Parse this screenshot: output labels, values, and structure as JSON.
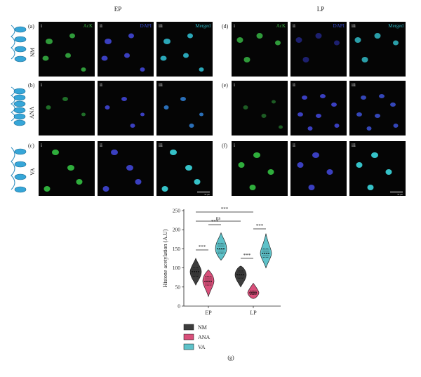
{
  "panels": {
    "groups": [
      {
        "title": "EP",
        "rows": [
          {
            "letter": "(a)",
            "label": "NM"
          },
          {
            "letter": "(b)",
            "label": "ANA"
          },
          {
            "letter": "(c)",
            "label": "VA"
          }
        ]
      },
      {
        "title": "LP",
        "rows": [
          {
            "letter": "(d)",
            "label": ""
          },
          {
            "letter": "(e)",
            "label": ""
          },
          {
            "letter": "(f)",
            "label": ""
          }
        ]
      }
    ],
    "columns": [
      {
        "roman": "i",
        "channel": "AcK",
        "color": "#3cb043"
      },
      {
        "roman": "ii",
        "channel": "DAPI",
        "color": "#3a4fd8"
      },
      {
        "roman": "iii",
        "channel": "Merged",
        "color": "#2fb6c4"
      }
    ],
    "scale_text": "50 μm"
  },
  "chart_data": {
    "type": "violin",
    "panel_label": "(g)",
    "ylabel": "Histone acetylation (A.U)",
    "ylim": [
      0,
      250
    ],
    "yticks": [
      0,
      50,
      100,
      150,
      200,
      250
    ],
    "categories": [
      "EP",
      "LP"
    ],
    "grid": false,
    "legend_position": "bottom-left",
    "series": [
      {
        "name": "NM",
        "color": "#3d3d3d",
        "median": [
          90,
          82
        ],
        "q1": [
          78,
          72
        ],
        "q3": [
          100,
          92
        ],
        "min": [
          55,
          50
        ],
        "max": [
          125,
          105
        ]
      },
      {
        "name": "ANA",
        "color": "#d94f7a",
        "median": [
          65,
          35
        ],
        "q1": [
          55,
          30
        ],
        "q3": [
          78,
          40
        ],
        "min": [
          25,
          20
        ],
        "max": [
          95,
          60
        ]
      },
      {
        "name": "VA",
        "color": "#5ec2c9",
        "median": [
          150,
          138
        ],
        "q1": [
          138,
          128
        ],
        "q3": [
          165,
          150
        ],
        "min": [
          120,
          100
        ],
        "max": [
          192,
          190
        ]
      }
    ],
    "annotations": [
      {
        "text": "***",
        "from": [
          "EP",
          "NM"
        ],
        "to": [
          "EP",
          "ANA"
        ]
      },
      {
        "text": "***",
        "from": [
          "EP",
          "ANA"
        ],
        "to": [
          "EP",
          "VA"
        ]
      },
      {
        "text": "ns",
        "from": [
          "EP",
          "NM"
        ],
        "to": [
          "LP",
          "NM"
        ]
      },
      {
        "text": "***",
        "from": [
          "EP",
          "NM"
        ],
        "to": [
          "LP",
          "ANA"
        ]
      },
      {
        "text": "***",
        "from": [
          "LP",
          "NM"
        ],
        "to": [
          "LP",
          "ANA"
        ]
      },
      {
        "text": "***",
        "from": [
          "LP",
          "ANA"
        ],
        "to": [
          "LP",
          "VA"
        ]
      }
    ]
  }
}
